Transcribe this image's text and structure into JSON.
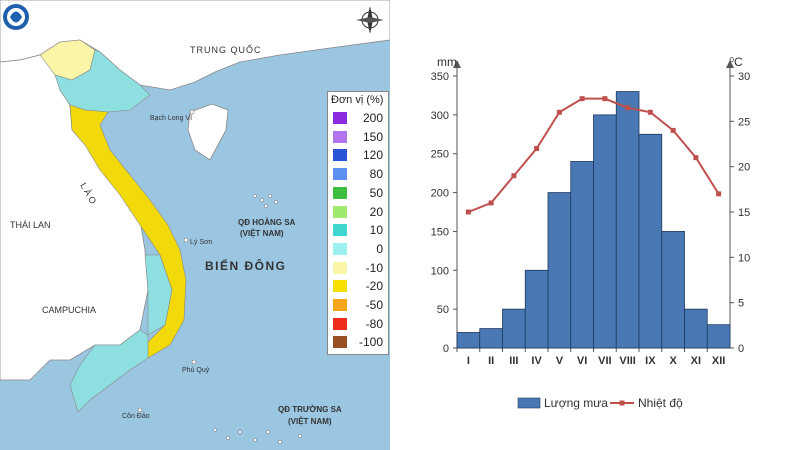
{
  "map": {
    "labels": {
      "trung_quoc": "TRUNG QUỐC",
      "bach_long_vi": "Bạch Long Vĩ",
      "lao": "L À O",
      "thai_lan": "THÁI LAN",
      "campuchia": "CAMPUCHIA",
      "ly_son": "Lý Sơn",
      "phu_quy": "Phú Quý",
      "con_dao": "Côn Đảo",
      "bien_dong": "BIỂN ĐÔNG",
      "hoang_sa_1": "QĐ HOÀNG SA",
      "hoang_sa_2": "(VIỆT NAM)",
      "truong_sa_1": "QĐ TRƯỜNG SA",
      "truong_sa_2": "(VIỆT NAM)"
    },
    "colors": {
      "sea": "#9bc6e2",
      "land_other": "#ffffff",
      "plus_10": "#8ee0e0",
      "zero": "#fbf5a8",
      "minus_20": "#f2d90a"
    },
    "legend": {
      "title": "Đơn vị (%)",
      "items": [
        {
          "label": "200",
          "color": "#8a2be2"
        },
        {
          "label": "150",
          "color": "#b374ef"
        },
        {
          "label": "120",
          "color": "#2a55d6"
        },
        {
          "label": "80",
          "color": "#5c8ff0"
        },
        {
          "label": "50",
          "color": "#3fbf3f"
        },
        {
          "label": "20",
          "color": "#9fe870"
        },
        {
          "label": "10",
          "color": "#3fd6cf"
        },
        {
          "label": "0",
          "color": "#9cf0f0"
        },
        {
          "label": "-10",
          "color": "#fbf5a8"
        },
        {
          "label": "-20",
          "color": "#f7e000"
        },
        {
          "label": "-50",
          "color": "#f7a51b"
        },
        {
          "label": "-80",
          "color": "#ef2b1b"
        },
        {
          "label": "-100",
          "color": "#9a4f23"
        }
      ]
    }
  },
  "chart_data": {
    "type": "bar",
    "categories": [
      "I",
      "II",
      "III",
      "IV",
      "V",
      "VI",
      "VII",
      "VIII",
      "IX",
      "X",
      "XI",
      "XII"
    ],
    "series": [
      {
        "name": "Lượng mưa",
        "type": "bar",
        "axis": "left",
        "color": "#4a78b5",
        "values": [
          20,
          25,
          50,
          100,
          200,
          240,
          300,
          330,
          275,
          150,
          50,
          30
        ]
      },
      {
        "name": "Nhiệt độ",
        "type": "line",
        "axis": "right",
        "color": "#c0504d",
        "values": [
          15,
          16,
          19,
          22,
          26,
          27.5,
          27.5,
          26.5,
          26,
          24,
          21,
          17
        ]
      }
    ],
    "y_left": {
      "unit": "mm",
      "lim": [
        0,
        350
      ],
      "ticks": [
        0,
        50,
        100,
        150,
        200,
        250,
        300,
        350
      ]
    },
    "y_right": {
      "unit": "⁰C",
      "lim": [
        0,
        30
      ],
      "ticks": [
        0,
        5,
        10,
        15,
        20,
        25,
        30
      ]
    },
    "legend_position": "bottom"
  }
}
